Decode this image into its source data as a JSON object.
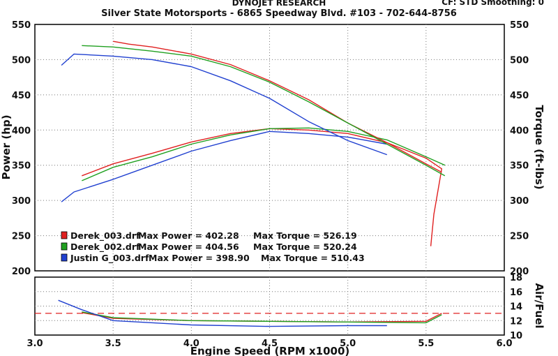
{
  "header": {
    "title": "DYNOJET RESEARCH",
    "subtitle": "Silver State Motorsports - 6865 Speedway Blvd. #103 - 702-644-8756",
    "corner": "CF: STD  Smoothing: 0"
  },
  "chart_data": [
    {
      "type": "line",
      "panel": "main",
      "xlabel": "",
      "ylabel": "Power (hp)",
      "ylabel_right": "Torque (ft-lbs)",
      "xlim": [
        3.0,
        6.0
      ],
      "ylim": [
        200,
        550
      ],
      "y_ticks": [
        200,
        250,
        300,
        350,
        400,
        450,
        500,
        550
      ],
      "grid": true,
      "legend": [
        {
          "file": "Derek_003.drf",
          "max_power_label": "Max Power = 402.28",
          "max_torque_label": "Max Torque = 526.19",
          "color": "#e02020"
        },
        {
          "file": "Derek_002.drf",
          "max_power_label": "Max Power = 404.56",
          "max_torque_label": "Max Torque = 520.24",
          "color": "#20a020"
        },
        {
          "file": "Justin G_003.drf",
          "max_power_label": "Max Power = 398.90",
          "max_torque_label": "Max Torque = 510.43",
          "color": "#2040d0"
        }
      ],
      "series": [
        {
          "name": "Derek_003.drf",
          "measure": "power",
          "color": "#e02020",
          "x": [
            3.3,
            3.5,
            3.75,
            4.0,
            4.25,
            4.5,
            4.75,
            5.0,
            5.25,
            5.5,
            5.6,
            5.55,
            5.53
          ],
          "y": [
            335,
            352,
            367,
            383,
            395,
            402,
            400,
            395,
            382,
            360,
            345,
            280,
            235
          ]
        },
        {
          "name": "Derek_002.drf",
          "measure": "power",
          "color": "#20a020",
          "x": [
            3.3,
            3.5,
            3.75,
            4.0,
            4.25,
            4.5,
            4.75,
            5.0,
            5.25,
            5.5,
            5.62
          ],
          "y": [
            328,
            347,
            362,
            380,
            393,
            402,
            403,
            398,
            386,
            362,
            350
          ]
        },
        {
          "name": "Justin G_003.drf",
          "measure": "power",
          "color": "#2040d0",
          "x": [
            3.17,
            3.25,
            3.5,
            3.75,
            4.0,
            4.25,
            4.5,
            4.75,
            5.0,
            5.25
          ],
          "y": [
            298,
            312,
            330,
            350,
            370,
            385,
            398,
            395,
            390,
            380
          ]
        },
        {
          "name": "Derek_003.drf",
          "measure": "torque",
          "color": "#e02020",
          "x": [
            3.5,
            3.6,
            3.75,
            4.0,
            4.25,
            4.5,
            4.75,
            5.0,
            5.25,
            5.5,
            5.6
          ],
          "y": [
            526,
            522,
            518,
            508,
            493,
            470,
            443,
            410,
            382,
            352,
            340
          ]
        },
        {
          "name": "Derek_002.drf",
          "measure": "torque",
          "color": "#20a020",
          "x": [
            3.3,
            3.5,
            3.75,
            4.0,
            4.25,
            4.5,
            4.75,
            5.0,
            5.25,
            5.5,
            5.62
          ],
          "y": [
            520,
            518,
            512,
            505,
            490,
            468,
            440,
            410,
            380,
            350,
            335
          ]
        },
        {
          "name": "Justin G_003.drf",
          "measure": "torque",
          "color": "#2040d0",
          "x": [
            3.17,
            3.25,
            3.5,
            3.75,
            4.0,
            4.25,
            4.5,
            4.75,
            5.0,
            5.25
          ],
          "y": [
            492,
            508,
            505,
            500,
            490,
            470,
            445,
            412,
            385,
            365
          ]
        }
      ]
    },
    {
      "type": "line",
      "panel": "air_fuel",
      "xlabel": "Engine Speed (RPM x1000)",
      "ylabel": "Air/Fuel",
      "xlim": [
        3.0,
        6.0
      ],
      "ylim": [
        10,
        18
      ],
      "x_ticks": [
        "3.0",
        "3.5",
        "4.0",
        "4.5",
        "5.0",
        "5.5",
        "6.0"
      ],
      "y_ticks": [
        10,
        12,
        14,
        16,
        18
      ],
      "reference_line": 13.0,
      "series": [
        {
          "name": "Derek_003.drf",
          "color": "#e02020",
          "x": [
            3.3,
            3.5,
            4.0,
            4.5,
            5.0,
            5.5,
            5.6
          ],
          "y": [
            13.1,
            12.3,
            12.0,
            11.9,
            11.8,
            11.9,
            13.0
          ]
        },
        {
          "name": "Derek_002.drf",
          "color": "#20a020",
          "x": [
            3.3,
            3.5,
            4.0,
            4.5,
            5.0,
            5.5,
            5.6
          ],
          "y": [
            13.2,
            12.4,
            12.0,
            11.9,
            11.8,
            11.7,
            12.8
          ]
        },
        {
          "name": "Justin G_003.drf",
          "color": "#2040d0",
          "x": [
            3.15,
            3.3,
            3.5,
            4.0,
            4.5,
            5.0,
            5.25
          ],
          "y": [
            14.8,
            13.5,
            12.0,
            11.4,
            11.2,
            11.3,
            11.3
          ]
        }
      ]
    }
  ]
}
